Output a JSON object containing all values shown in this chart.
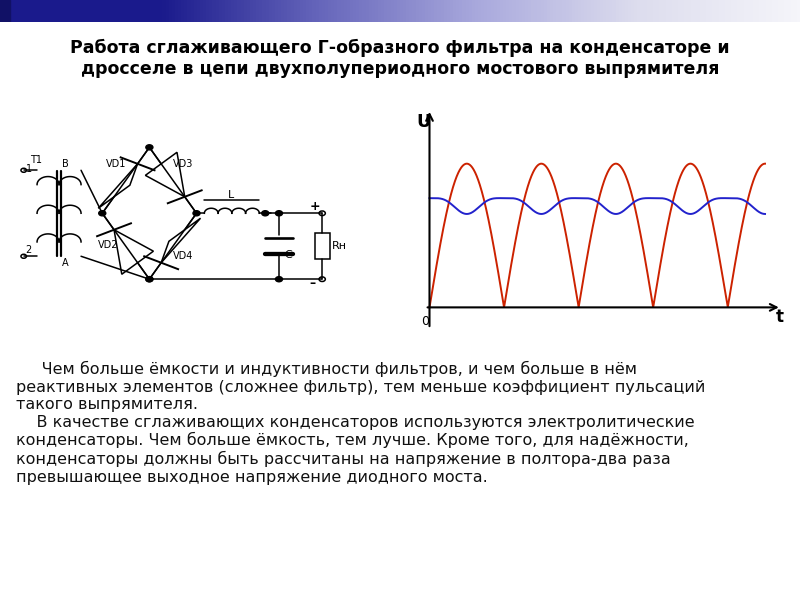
{
  "title_line1": "Работа сглаживающего Г-образного фильтра на конденсаторе и",
  "title_line2": "дросселе в цепи двухполупериодного мостового выпрямителя",
  "title_fontsize": 12.5,
  "body_text_para1": "     Чем больше ёмкости и индуктивности фильтров, и чем больше в нём\nреактивных элементов (сложнее фильтр), тем меньше коэффициент пульсаций\nтакого выпрямителя.",
  "body_text_para2": "    В качестве сглаживающих конденсаторов используются электролитические\nконденсаторы. Чем больше ёмкость, тем лучше. Кроме того, для надёжности,\nконденсаторы должны быть рассчитаны на напряжение в полтора-два раза\nпревышающее выходное напряжение диодного моста.",
  "body_fontsize": 11.5,
  "background_color": "#ffffff",
  "graph_wave_color": "#cc2200",
  "graph_smooth_color": "#2222cc",
  "graph_label_U": "U",
  "graph_label_t": "t",
  "graph_label_0": "0"
}
